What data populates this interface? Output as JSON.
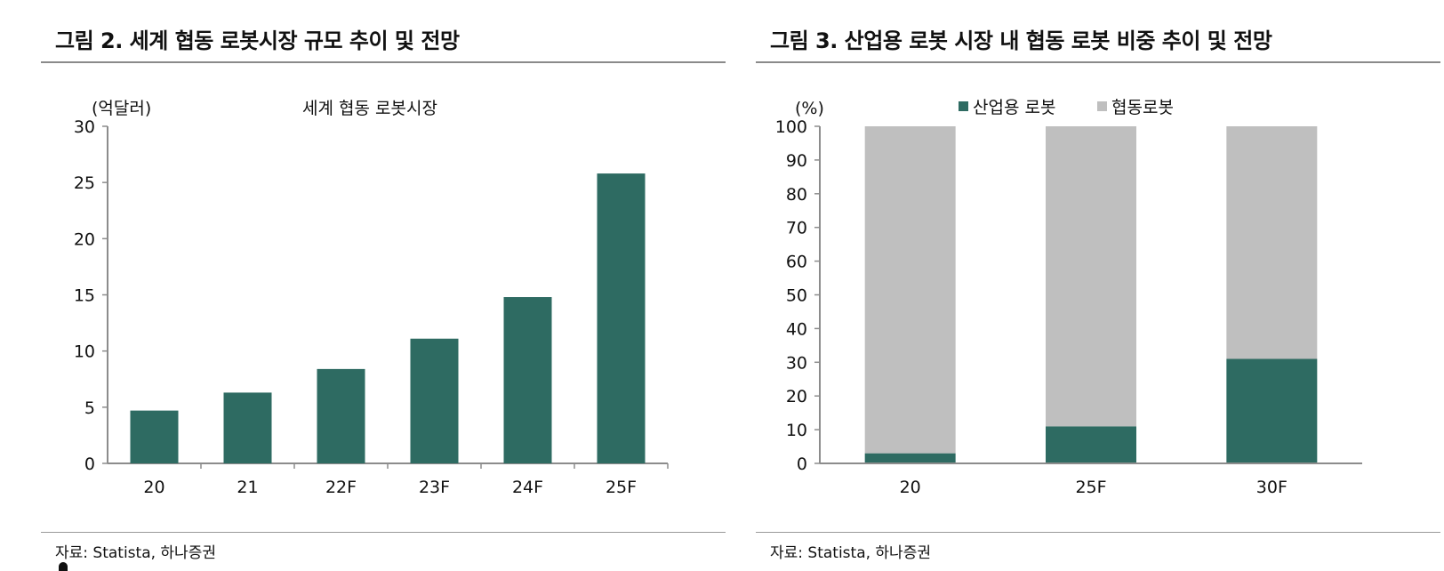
{
  "figures": [
    {
      "id": "fig2",
      "title": "그림 2. 세계 협동 로봇시장 규모 추이 및 전망",
      "source": "자료: Statista, 하나증권",
      "chart_data": {
        "type": "bar",
        "title": "세계 협동 로봇시장",
        "unit_label": "(억달러)",
        "categories": [
          "20",
          "21",
          "22F",
          "23F",
          "24F",
          "25F"
        ],
        "values": [
          4.7,
          6.3,
          8.4,
          11.1,
          14.8,
          25.8
        ],
        "ylim": [
          0,
          30
        ],
        "yticks": [
          0,
          5,
          10,
          15,
          20,
          25,
          30
        ],
        "color": "#2e6b62",
        "grid": false
      }
    },
    {
      "id": "fig3",
      "title": "그림 3. 산업용 로봇 시장 내 협동 로봇 비중 추이 및 전망",
      "source": "자료: Statista, 하나증권",
      "chart_data": {
        "type": "bar",
        "stacked": true,
        "unit_label": "(%)",
        "categories": [
          "20",
          "25F",
          "30F"
        ],
        "series": [
          {
            "name": "산업용 로봇",
            "values": [
              3,
              11,
              31
            ],
            "color": "#2e6b62"
          },
          {
            "name": "협동로봇",
            "values": [
              97,
              89,
              69
            ],
            "color": "#bfbfbf"
          }
        ],
        "ylim": [
          0,
          100
        ],
        "yticks": [
          0,
          10,
          20,
          30,
          40,
          50,
          60,
          70,
          80,
          90,
          100
        ],
        "legend": "top",
        "grid": false
      }
    }
  ]
}
